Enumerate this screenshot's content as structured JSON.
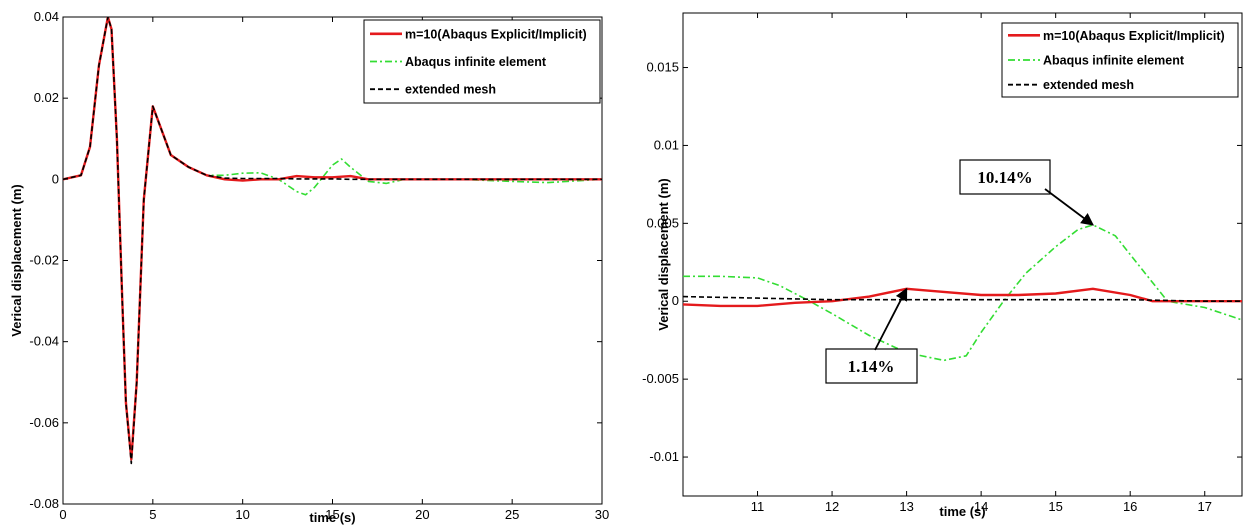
{
  "chart_data": [
    {
      "type": "line",
      "title": "",
      "xlabel": "time (s)",
      "ylabel": "Verical displacement (m)",
      "xlim": [
        0,
        30
      ],
      "ylim": [
        -0.08,
        0.04
      ],
      "xticks": [
        0,
        5,
        10,
        15,
        20,
        25,
        30
      ],
      "xtick_labels": [
        "0",
        "5",
        "10",
        "15",
        "20",
        "25",
        "30"
      ],
      "yticks": [
        -0.08,
        -0.06,
        -0.04,
        -0.02,
        0,
        0.02,
        0.04
      ],
      "ytick_labels": [
        "-0.08",
        "-0.06",
        "-0.04",
        "-0.02",
        "0",
        "0.02",
        "0.04"
      ],
      "grid": false,
      "legend_position": "top-right",
      "series": [
        {
          "name": "m=10(Abaqus Explicit/Implicit)",
          "color": "#e41a1c",
          "style": "solid",
          "x": [
            0,
            1,
            1.5,
            2,
            2.5,
            2.7,
            3,
            3.3,
            3.5,
            3.8,
            4.1,
            4.5,
            5,
            5.5,
            6,
            7,
            8,
            9,
            10,
            11,
            12,
            13,
            14,
            15,
            16,
            17,
            18,
            19,
            20,
            22,
            25,
            27,
            30
          ],
          "y": [
            0,
            0.001,
            0.008,
            0.028,
            0.04,
            0.037,
            0.01,
            -0.03,
            -0.055,
            -0.069,
            -0.05,
            -0.005,
            0.018,
            0.012,
            0.006,
            0.003,
            0.001,
            0,
            -0.0003,
            0,
            0,
            0.0008,
            0.0005,
            0.0005,
            0.0008,
            0,
            0,
            0,
            0,
            0,
            0,
            0,
            0
          ]
        },
        {
          "name": "Abaqus infinite element",
          "color": "#33dd33",
          "style": "dashdot",
          "x": [
            0,
            1,
            1.5,
            2,
            2.5,
            2.7,
            3,
            3.3,
            3.5,
            3.8,
            4.1,
            4.5,
            5,
            5.5,
            6,
            7,
            8,
            9,
            10,
            11,
            12,
            13,
            13.5,
            14,
            15,
            15.5,
            16,
            17,
            18,
            19,
            20,
            22,
            25,
            27,
            30
          ],
          "y": [
            0,
            0.001,
            0.008,
            0.028,
            0.04,
            0.037,
            0.01,
            -0.03,
            -0.055,
            -0.069,
            -0.05,
            -0.005,
            0.018,
            0.012,
            0.006,
            0.003,
            0.001,
            0.001,
            0.0015,
            0.0016,
            0,
            -0.003,
            -0.0038,
            -0.002,
            0.0035,
            0.005,
            0.003,
            -0.0005,
            -0.001,
            0,
            0,
            0,
            -0.0005,
            -0.0008,
            0
          ]
        },
        {
          "name": "extended mesh",
          "color": "#000000",
          "style": "dashed",
          "x": [
            0,
            1,
            1.5,
            2,
            2.5,
            2.7,
            3,
            3.3,
            3.5,
            3.8,
            4.1,
            4.5,
            5,
            5.5,
            6,
            7,
            8,
            9,
            10,
            11,
            12,
            13,
            14,
            15,
            16,
            17,
            18,
            20,
            25,
            30
          ],
          "y": [
            0,
            0.001,
            0.008,
            0.028,
            0.04,
            0.037,
            0.01,
            -0.03,
            -0.055,
            -0.07,
            -0.05,
            -0.005,
            0.018,
            0.012,
            0.006,
            0.003,
            0.001,
            0.0003,
            0.0002,
            0.0002,
            0.0002,
            0.0001,
            0.0001,
            0.0001,
            0,
            0,
            0,
            0,
            0,
            0
          ]
        }
      ]
    },
    {
      "type": "line",
      "title": "",
      "xlabel": "time (s)",
      "ylabel": "Verical displacement (m)",
      "xlim": [
        10,
        17.5
      ],
      "ylim": [
        -0.0125,
        0.0185
      ],
      "xticks": [
        11,
        12,
        13,
        14,
        15,
        16,
        17
      ],
      "xtick_labels": [
        "11",
        "12",
        "13",
        "14",
        "15",
        "16",
        "17"
      ],
      "yticks": [
        -0.01,
        -0.005,
        0,
        0.005,
        0.01,
        0.015
      ],
      "ytick_labels": [
        "-0.01",
        "-0.005",
        "0",
        "0.005",
        "0.01",
        "0.015"
      ],
      "grid": false,
      "legend_position": "top-right",
      "annotations": [
        {
          "text": "10.14%",
          "point": [
            15.5,
            0.0049
          ]
        },
        {
          "text": "1.14%",
          "point": [
            13,
            0.0008
          ]
        }
      ],
      "series": [
        {
          "name": "m=10(Abaqus Explicit/Implicit)",
          "color": "#e41a1c",
          "style": "solid",
          "x": [
            10,
            10.5,
            11,
            11.5,
            12,
            12.5,
            13,
            13.5,
            14,
            14.5,
            15,
            15.5,
            16,
            16.3,
            16.6,
            17,
            17.5
          ],
          "y": [
            -0.0002,
            -0.0003,
            -0.0003,
            -0.0001,
            0,
            0.0003,
            0.0008,
            0.0006,
            0.0004,
            0.0004,
            0.0005,
            0.0008,
            0.0004,
            0,
            0,
            0,
            0
          ]
        },
        {
          "name": "Abaqus infinite element",
          "color": "#33dd33",
          "style": "dashdot",
          "x": [
            10,
            10.5,
            11,
            11.3,
            11.7,
            12,
            12.5,
            13,
            13.5,
            13.8,
            14,
            14.3,
            14.6,
            15,
            15.3,
            15.5,
            15.8,
            16.2,
            16.5,
            17,
            17.5
          ],
          "y": [
            0.0016,
            0.0016,
            0.0015,
            0.001,
            0,
            -0.0008,
            -0.0022,
            -0.0033,
            -0.0038,
            -0.0035,
            -0.002,
            0,
            0.0018,
            0.0035,
            0.0046,
            0.0049,
            0.0042,
            0.0018,
            0,
            -0.0004,
            -0.0012
          ]
        },
        {
          "name": "extended mesh",
          "color": "#000000",
          "style": "dashed",
          "x": [
            10,
            11,
            12,
            13,
            14,
            15,
            16,
            17,
            17.5
          ],
          "y": [
            0.0003,
            0.0002,
            0.0001,
            0.0001,
            0.0001,
            0.0001,
            0.0001,
            0,
            0
          ]
        }
      ]
    }
  ]
}
